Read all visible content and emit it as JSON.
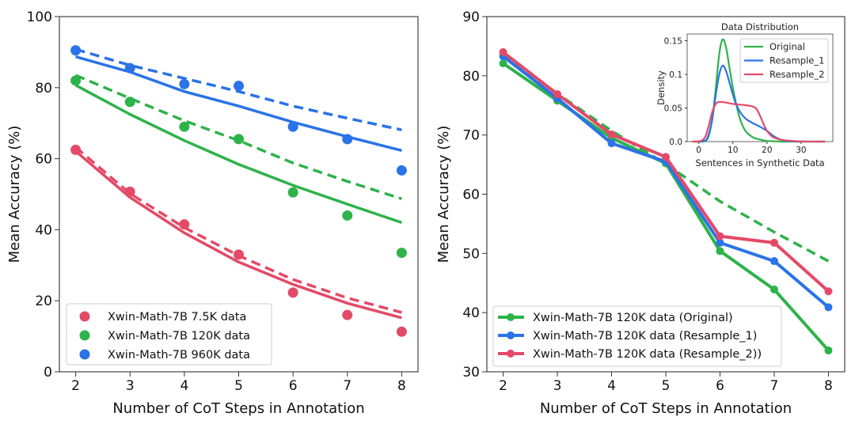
{
  "colors": {
    "red": "#e34a67",
    "green": "#2eb24a",
    "blue": "#2a73e8"
  },
  "chart_data": [
    {
      "type": "scatter",
      "xlabel": "Number of CoT Steps in Annotation",
      "ylabel": "Mean Accuracy (%)",
      "xlim": [
        1.7,
        8.3
      ],
      "ylim": [
        0,
        100
      ],
      "xticks": [
        2,
        3,
        4,
        5,
        6,
        7,
        8
      ],
      "yticks": [
        0,
        20,
        40,
        60,
        80,
        100
      ],
      "grid": false,
      "legend_position": "bottom-left",
      "x": [
        2,
        3,
        4,
        5,
        6,
        7,
        8
      ],
      "series": [
        {
          "name": "Xwin-Math-7B 7.5K data",
          "color": "red",
          "values": [
            62.5,
            50.7,
            41.5,
            33.0,
            22.3,
            16.0,
            11.3
          ],
          "fit_solid": [
            62.1,
            49.1,
            39.1,
            30.9,
            24.6,
            19.3,
            15.2
          ],
          "fit_dashed": [
            63.2,
            50.2,
            40.6,
            32.7,
            26.0,
            20.8,
            16.7
          ]
        },
        {
          "name": "Xwin-Math-7B 120K data",
          "color": "green",
          "values": [
            82.0,
            76.0,
            69.0,
            65.5,
            50.5,
            44.0,
            33.5
          ],
          "fit_solid": [
            80.7,
            72.5,
            65.1,
            58.4,
            52.5,
            47.2,
            42.0
          ],
          "fit_dashed": [
            83.5,
            77.0,
            70.7,
            65.1,
            58.8,
            53.6,
            48.7
          ]
        },
        {
          "name": "Xwin-Math-7B 960K data",
          "color": "blue",
          "values": [
            90.5,
            85.5,
            81.0,
            80.5,
            69.0,
            65.5,
            56.7
          ],
          "fit_solid": [
            88.7,
            84.4,
            78.9,
            74.8,
            70.3,
            66.2,
            62.3
          ],
          "fit_dashed": [
            90.8,
            86.3,
            82.6,
            78.9,
            74.8,
            71.4,
            68.1
          ]
        }
      ]
    },
    {
      "type": "line",
      "xlabel": "Number of CoT Steps in Annotation",
      "ylabel": "Mean Accuracy (%)",
      "xlim": [
        1.7,
        8.3
      ],
      "ylim": [
        30,
        90
      ],
      "xticks": [
        2,
        3,
        4,
        5,
        6,
        7,
        8
      ],
      "yticks": [
        30,
        40,
        50,
        60,
        70,
        80,
        90
      ],
      "grid": false,
      "legend_position": "bottom-left",
      "x": [
        2,
        3,
        4,
        5,
        6,
        7,
        8
      ],
      "series": [
        {
          "name": "Xwin-Math-7B 120K data (Original)",
          "color": "green",
          "values": [
            82.1,
            75.8,
            69.5,
            65.2,
            50.4,
            43.9,
            33.6
          ]
        },
        {
          "name": "Xwin-Math-7B 120K data (Resample_1)",
          "color": "blue",
          "values": [
            83.3,
            76.2,
            68.6,
            65.5,
            51.8,
            48.7,
            40.9
          ]
        },
        {
          "name": "Xwin-Math-7B 120K data (Resample_2))",
          "color": "red",
          "values": [
            84.0,
            76.9,
            70.1,
            66.3,
            52.9,
            51.8,
            43.6
          ]
        }
      ],
      "dashed_fit": {
        "color": "green",
        "values": [
          83.5,
          77.0,
          70.7,
          65.1,
          58.8,
          53.6,
          48.7
        ]
      }
    },
    {
      "type": "line",
      "title": "Data Distribution",
      "xlabel": "Sentences in Synthetic Data",
      "ylabel": "Density",
      "xlim": [
        -3.4,
        39.3
      ],
      "ylim": [
        0,
        0.16
      ],
      "xticks": [
        0,
        10,
        20,
        30
      ],
      "yticks": [
        0.0,
        0.05,
        0.1,
        0.15
      ],
      "ytick_labels": [
        "0.0",
        "0.05",
        "0.1",
        "0.15"
      ],
      "legend_position": "top-right",
      "series": [
        {
          "name": "Original",
          "color": "green",
          "x": [
            -1,
            0,
            2,
            3,
            4,
            5,
            6,
            7,
            8,
            9,
            10,
            11,
            12,
            13,
            14,
            16,
            18,
            20,
            22,
            25,
            30,
            37
          ],
          "y": [
            0,
            0,
            0.001,
            0.01,
            0.035,
            0.08,
            0.13,
            0.152,
            0.14,
            0.11,
            0.08,
            0.055,
            0.035,
            0.022,
            0.014,
            0.006,
            0.003,
            0.001,
            0.0005,
            0,
            0,
            0
          ]
        },
        {
          "name": "Resample_1",
          "color": "blue",
          "x": [
            -1,
            0,
            2,
            3,
            4,
            5,
            6,
            7,
            8,
            9,
            10,
            11,
            12,
            13,
            14,
            16,
            18,
            20,
            22,
            24,
            26,
            30,
            37
          ],
          "y": [
            0,
            0,
            0.002,
            0.012,
            0.035,
            0.07,
            0.1,
            0.113,
            0.105,
            0.088,
            0.07,
            0.055,
            0.045,
            0.038,
            0.033,
            0.027,
            0.022,
            0.016,
            0.008,
            0.003,
            0.001,
            0,
            0
          ]
        },
        {
          "name": "Resample_2",
          "color": "red",
          "x": [
            -2,
            0,
            1,
            2,
            3,
            4,
            5,
            6,
            8,
            10,
            12,
            14,
            16,
            17,
            18,
            19,
            20,
            21,
            22,
            24,
            26,
            30,
            37
          ],
          "y": [
            0,
            0.0005,
            0.002,
            0.008,
            0.025,
            0.045,
            0.056,
            0.059,
            0.058,
            0.056,
            0.055,
            0.054,
            0.052,
            0.048,
            0.038,
            0.026,
            0.016,
            0.01,
            0.006,
            0.003,
            0.0015,
            0.0003,
            0
          ]
        }
      ]
    }
  ]
}
